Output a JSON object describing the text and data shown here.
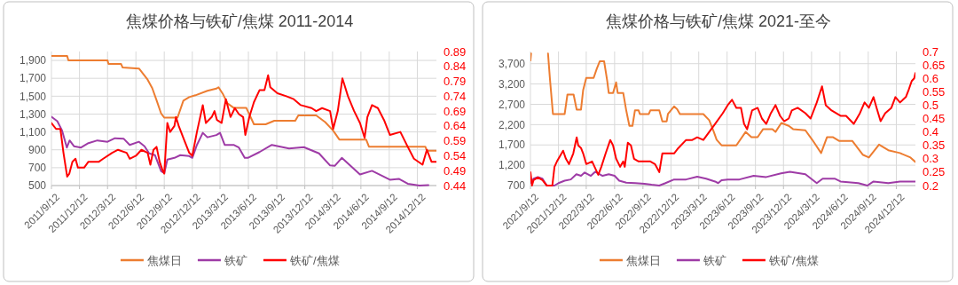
{
  "chart_data": [
    {
      "type": "line",
      "title": "焦煤价格与铁矿/焦煤  2011-2014",
      "grid": true,
      "legend": "bottom",
      "xlim": [
        "2011-09-12",
        "2015-02-12"
      ],
      "xticks": [
        {
          "value": "2011-09-12",
          "label": "2011/9/12"
        },
        {
          "value": "2011-12-12",
          "label": "2011/12/12"
        },
        {
          "value": "2012-03-12",
          "label": "2012/3/12"
        },
        {
          "value": "2012-06-12",
          "label": "2012/6/12"
        },
        {
          "value": "2012-09-12",
          "label": "2012/9/12"
        },
        {
          "value": "2012-12-12",
          "label": "2012/12/12"
        },
        {
          "value": "2013-03-12",
          "label": "2013/3/12"
        },
        {
          "value": "2013-06-12",
          "label": "2013/6/12"
        },
        {
          "value": "2013-09-12",
          "label": "2013/9/12"
        },
        {
          "value": "2013-12-12",
          "label": "2013/12/12"
        },
        {
          "value": "2014-03-12",
          "label": "2014/3/12"
        },
        {
          "value": "2014-06-12",
          "label": "2014/6/12"
        },
        {
          "value": "2014-09-12",
          "label": "2014/9/12"
        },
        {
          "value": "2014-12-12",
          "label": "2014/12/12"
        }
      ],
      "ylim": [
        500,
        2000
      ],
      "yticks": [
        500,
        700,
        900,
        {
          "value": 1100,
          "label": "1,100"
        },
        {
          "value": 1300,
          "label": "1,300"
        },
        {
          "value": 1500,
          "label": "1,500"
        },
        {
          "value": 1700,
          "label": "1,700"
        },
        {
          "value": 1900,
          "label": "1,900"
        }
      ],
      "y2lim": [
        0.44,
        0.89
      ],
      "y2ticks": [
        0.44,
        0.49,
        0.54,
        0.59,
        0.64,
        0.69,
        0.74,
        0.79,
        0.84,
        0.89
      ],
      "series": [
        {
          "name": "焦煤日",
          "color": "#ed7d31",
          "x": [
            "2011-09-12",
            "2011-11-02",
            "2011-11-06",
            "2012-03-12",
            "2012-03-15",
            "2012-04-25",
            "2012-04-30",
            "2012-06-22",
            "2012-07-20",
            "2012-08-04",
            "2012-08-18",
            "2012-09-02",
            "2012-09-12",
            "2012-10-25",
            "2012-11-13",
            "2012-12-02",
            "2012-12-22",
            "2013-01-30",
            "2013-02-28",
            "2013-03-07",
            "2013-03-22",
            "2013-04-05",
            "2013-04-25",
            "2013-06-05",
            "2013-06-30",
            "2013-08-07",
            "2013-09-04",
            "2013-11-11",
            "2013-11-21",
            "2014-01-18",
            "2014-02-16",
            "2014-03-14",
            "2014-04-03",
            "2014-06-29",
            "2014-07-08",
            "2015-01-07",
            "2015-01-12",
            "2015-02-12"
          ],
          "values": [
            1950,
            1950,
            1900,
            1900,
            1860,
            1860,
            1820,
            1810,
            1685,
            1590,
            1455,
            1305,
            1260,
            1260,
            1450,
            1490,
            1510,
            1560,
            1585,
            1600,
            1520,
            1420,
            1370,
            1370,
            1185,
            1185,
            1225,
            1225,
            1285,
            1285,
            1210,
            1115,
            1015,
            1015,
            935,
            935,
            890,
            890
          ]
        },
        {
          "name": "铁矿",
          "color": "#9e3ba6",
          "x": [
            "2011-09-12",
            "2011-10-01",
            "2011-10-16",
            "2011-11-01",
            "2011-11-10",
            "2011-11-24",
            "2011-12-17",
            "2012-01-10",
            "2012-02-08",
            "2012-03-12",
            "2012-04-05",
            "2012-05-03",
            "2012-05-23",
            "2012-06-22",
            "2012-07-10",
            "2012-07-25",
            "2012-08-13",
            "2012-09-02",
            "2012-09-12",
            "2012-09-22",
            "2012-10-15",
            "2012-11-03",
            "2012-12-02",
            "2012-12-12",
            "2012-12-27",
            "2013-01-15",
            "2013-01-30",
            "2013-02-28",
            "2013-03-12",
            "2013-03-27",
            "2013-04-25",
            "2013-05-12",
            "2013-05-31",
            "2013-06-10",
            "2013-07-18",
            "2013-08-27",
            "2013-10-22",
            "2013-12-09",
            "2014-01-27",
            "2014-03-04",
            "2014-03-19",
            "2014-04-11",
            "2014-06-09",
            "2014-07-18",
            "2014-09-14",
            "2014-10-13",
            "2014-11-11",
            "2014-12-19",
            "2015-01-17"
          ],
          "values": [
            1270,
            1220,
            1120,
            925,
            1005,
            940,
            925,
            975,
            1005,
            990,
            1030,
            1025,
            955,
            990,
            940,
            860,
            840,
            660,
            640,
            790,
            810,
            840,
            830,
            810,
            955,
            1090,
            1040,
            1065,
            1090,
            955,
            955,
            925,
            810,
            810,
            875,
            955,
            915,
            930,
            860,
            725,
            720,
            810,
            625,
            665,
            565,
            575,
            520,
            500,
            505
          ]
        },
        {
          "name": "铁矿/焦煤",
          "color": "#ff0000",
          "axis": "y2",
          "x": [
            "2011-09-12",
            "2011-09-27",
            "2011-10-11",
            "2011-10-21",
            "2011-11-02",
            "2011-11-09",
            "2011-11-19",
            "2011-11-29",
            "2011-12-07",
            "2011-12-27",
            "2012-01-10",
            "2012-01-29",
            "2012-02-13",
            "2012-02-27",
            "2012-03-27",
            "2012-04-15",
            "2012-05-13",
            "2012-05-23",
            "2012-06-12",
            "2012-06-30",
            "2012-07-20",
            "2012-07-29",
            "2012-08-08",
            "2012-08-18",
            "2012-08-28",
            "2012-09-07",
            "2012-09-12",
            "2012-09-22",
            "2012-10-01",
            "2012-10-15",
            "2012-10-20",
            "2012-10-29",
            "2012-11-13",
            "2012-12-02",
            "2012-12-12",
            "2012-12-27",
            "2013-01-15",
            "2013-01-25",
            "2013-02-13",
            "2013-02-22",
            "2013-03-02",
            "2013-03-17",
            "2013-03-31",
            "2013-04-15",
            "2013-04-29",
            "2013-05-12",
            "2013-05-26",
            "2013-06-02",
            "2013-06-15",
            "2013-06-30",
            "2013-07-18",
            "2013-08-03",
            "2013-08-15",
            "2013-08-22",
            "2013-09-14",
            "2013-10-13",
            "2013-11-06",
            "2013-11-29",
            "2014-01-03",
            "2014-01-18",
            "2014-02-06",
            "2014-03-04",
            "2014-03-14",
            "2014-03-29",
            "2014-04-13",
            "2014-05-01",
            "2014-05-21",
            "2014-06-09",
            "2014-06-24",
            "2014-07-03",
            "2014-07-18",
            "2014-08-06",
            "2014-08-26",
            "2014-09-14",
            "2014-10-18",
            "2014-11-11",
            "2014-12-01",
            "2014-12-29",
            "2015-01-12",
            "2015-01-27",
            "2015-02-12"
          ],
          "values": [
            0.65,
            0.63,
            0.63,
            0.55,
            0.47,
            0.48,
            0.52,
            0.53,
            0.5,
            0.5,
            0.52,
            0.52,
            0.52,
            0.53,
            0.55,
            0.56,
            0.55,
            0.53,
            0.54,
            0.56,
            0.55,
            0.51,
            0.56,
            0.57,
            0.52,
            0.49,
            0.48,
            0.65,
            0.62,
            0.64,
            0.67,
            0.64,
            0.6,
            0.55,
            0.54,
            0.62,
            0.71,
            0.65,
            0.67,
            0.69,
            0.66,
            0.65,
            0.73,
            0.67,
            0.7,
            0.68,
            0.67,
            0.61,
            0.67,
            0.72,
            0.76,
            0.76,
            0.81,
            0.77,
            0.75,
            0.74,
            0.73,
            0.71,
            0.7,
            0.69,
            0.7,
            0.69,
            0.63,
            0.69,
            0.8,
            0.74,
            0.69,
            0.65,
            0.6,
            0.67,
            0.71,
            0.7,
            0.66,
            0.61,
            0.62,
            0.57,
            0.53,
            0.51,
            0.56,
            0.52,
            0.52
          ]
        }
      ]
    },
    {
      "type": "line",
      "title": "焦煤价格与铁矿/焦煤  2021-至今",
      "grid": true,
      "legend": "bottom",
      "xlim": [
        "2021-09-12",
        "2025-02-12"
      ],
      "xticks": [
        {
          "value": "2021-09-12",
          "label": "2021/9/12"
        },
        {
          "value": "2021-12-12",
          "label": "2021/12/12"
        },
        {
          "value": "2022-03-12",
          "label": "2022/3/12"
        },
        {
          "value": "2022-06-12",
          "label": "2022/6/12"
        },
        {
          "value": "2022-09-12",
          "label": "2022/9/12"
        },
        {
          "value": "2022-12-12",
          "label": "2022/12/12"
        },
        {
          "value": "2023-03-12",
          "label": "2023/3/12"
        },
        {
          "value": "2023-06-12",
          "label": "2023/6/12"
        },
        {
          "value": "2023-09-12",
          "label": "2023/9/12"
        },
        {
          "value": "2023-12-12",
          "label": "2023/12/12"
        },
        {
          "value": "2024-03-12",
          "label": "2024/3/12"
        },
        {
          "value": "2024-06-12",
          "label": "2024/6/12"
        },
        {
          "value": "2024-09-12",
          "label": "2024/9/12"
        },
        {
          "value": "2024-12-12",
          "label": "2024/12/12"
        }
      ],
      "ylim": [
        700,
        4000
      ],
      "yticks": [
        700,
        {
          "value": 1200,
          "label": "1,200"
        },
        {
          "value": 1700,
          "label": "1,700"
        },
        {
          "value": 2200,
          "label": "2,200"
        },
        {
          "value": 2700,
          "label": "2,700"
        },
        {
          "value": 3200,
          "label": "3,200"
        },
        {
          "value": 3700,
          "label": "3,700"
        }
      ],
      "y2lim": [
        0.2,
        0.7
      ],
      "y2ticks": [
        0.2,
        0.25,
        0.3,
        0.35,
        0.4,
        0.45,
        0.5,
        0.55,
        0.6,
        0.65,
        0.7
      ],
      "series": [
        {
          "name": "焦煤日",
          "color": "#ed7d31",
          "x": [
            "2021-09-12",
            "2021-09-14",
            "2021-10-10",
            "2021-11-08",
            "2021-11-14",
            "2021-11-24",
            "2022-01-01",
            "2022-01-10",
            "2022-01-30",
            "2022-02-09",
            "2022-02-23",
            "2022-03-02",
            "2022-03-12",
            "2022-04-05",
            "2022-04-15",
            "2022-04-25",
            "2022-05-09",
            "2022-05-19",
            "2022-05-24",
            "2022-06-07",
            "2022-06-17",
            "2022-06-22",
            "2022-07-10",
            "2022-07-20",
            "2022-07-30",
            "2022-08-09",
            "2022-08-17",
            "2022-08-29",
            "2022-09-02",
            "2022-10-01",
            "2022-10-06",
            "2022-11-04",
            "2022-11-14",
            "2022-11-28",
            "2022-12-02",
            "2022-12-22",
            "2023-01-01",
            "2023-01-10",
            "2023-03-27",
            "2023-04-15",
            "2023-04-30",
            "2023-05-09",
            "2023-05-25",
            "2023-07-12",
            "2023-08-11",
            "2023-08-30",
            "2023-09-19",
            "2023-10-07",
            "2023-11-06",
            "2023-11-16",
            "2023-12-05",
            "2023-12-29",
            "2024-01-12",
            "2024-02-21",
            "2024-03-14",
            "2024-04-12",
            "2024-05-01",
            "2024-05-21",
            "2024-06-09",
            "2024-07-22",
            "2024-08-25",
            "2024-09-14",
            "2024-10-17",
            "2024-11-16",
            "2024-12-24",
            "2025-01-27",
            "2025-02-12"
          ],
          "values": [
            3780,
            3950,
            null,
            3950,
            3350,
            2460,
            2460,
            2940,
            2940,
            2570,
            2570,
            3050,
            3350,
            3350,
            3570,
            3760,
            3760,
            3280,
            2980,
            2980,
            3240,
            2980,
            2980,
            2540,
            2170,
            2170,
            2550,
            2550,
            2460,
            2460,
            2550,
            2550,
            2280,
            2280,
            2460,
            2650,
            2580,
            2460,
            2460,
            2310,
            2020,
            1830,
            1690,
            1690,
            2020,
            1890,
            1890,
            2090,
            2090,
            2020,
            2240,
            2170,
            2090,
            2060,
            1830,
            1500,
            1890,
            1890,
            1800,
            1800,
            1460,
            1390,
            1710,
            1570,
            1500,
            1390,
            1280
          ]
        },
        {
          "name": "铁矿",
          "color": "#9e3ba6",
          "x": [
            "2021-09-12",
            "2021-09-22",
            "2021-10-06",
            "2021-10-21",
            "2021-11-04",
            "2021-11-29",
            "2021-12-12",
            "2022-01-01",
            "2022-01-21",
            "2022-02-08",
            "2022-02-23",
            "2022-03-07",
            "2022-03-27",
            "2022-04-10",
            "2022-05-04",
            "2022-05-24",
            "2022-06-12",
            "2022-06-27",
            "2022-07-20",
            "2022-08-19",
            "2022-09-17",
            "2022-10-10",
            "2022-11-04",
            "2022-11-24",
            "2022-12-22",
            "2023-01-30",
            "2023-03-07",
            "2023-04-05",
            "2023-05-04",
            "2023-05-14",
            "2023-05-25",
            "2023-06-14",
            "2023-07-22",
            "2023-09-06",
            "2023-10-17",
            "2023-12-04",
            "2024-01-02",
            "2024-02-21",
            "2024-03-29",
            "2024-04-17",
            "2024-05-26",
            "2024-06-14",
            "2024-08-11",
            "2024-09-09",
            "2024-09-29",
            "2024-11-16",
            "2024-12-24",
            "2025-02-12"
          ],
          "values": [
            760,
            870,
            910,
            870,
            700,
            700,
            760,
            820,
            850,
            980,
            940,
            1020,
            940,
            1040,
            940,
            980,
            940,
            820,
            770,
            760,
            745,
            720,
            700,
            760,
            850,
            850,
            920,
            870,
            800,
            760,
            830,
            850,
            850,
            940,
            910,
            1000,
            1040,
            980,
            760,
            870,
            870,
            800,
            760,
            700,
            800,
            760,
            800,
            800
          ]
        },
        {
          "name": "铁矿/焦煤",
          "color": "#ff0000",
          "axis": "y2",
          "x": [
            "2021-09-12",
            "2021-09-17",
            "2021-09-22",
            "2021-10-06",
            "2021-10-21",
            "2021-11-04",
            "2021-11-22",
            "2021-11-29",
            "2021-12-07",
            "2021-12-17",
            "2021-12-27",
            "2022-01-05",
            "2022-01-15",
            "2022-01-29",
            "2022-02-09",
            "2022-02-14",
            "2022-02-23",
            "2022-03-02",
            "2022-03-12",
            "2022-03-31",
            "2022-04-20",
            "2022-04-30",
            "2022-05-14",
            "2022-05-29",
            "2022-06-07",
            "2022-06-17",
            "2022-06-30",
            "2022-07-10",
            "2022-07-15",
            "2022-07-25",
            "2022-08-04",
            "2022-08-14",
            "2022-08-29",
            "2022-09-17",
            "2022-10-06",
            "2022-10-21",
            "2022-11-04",
            "2022-11-14",
            "2022-12-02",
            "2022-12-22",
            "2023-01-05",
            "2023-01-30",
            "2023-02-19",
            "2023-03-07",
            "2023-03-27",
            "2023-04-15",
            "2023-05-04",
            "2023-05-29",
            "2023-06-14",
            "2023-06-28",
            "2023-07-12",
            "2023-07-27",
            "2023-08-06",
            "2023-08-16",
            "2023-09-01",
            "2023-09-19",
            "2023-10-03",
            "2023-10-17",
            "2023-11-01",
            "2023-11-16",
            "2023-12-01",
            "2023-12-14",
            "2023-12-29",
            "2024-01-08",
            "2024-01-27",
            "2024-02-21",
            "2024-03-09",
            "2024-03-29",
            "2024-04-15",
            "2024-04-27",
            "2024-05-16",
            "2024-06-14",
            "2024-07-02",
            "2024-07-27",
            "2024-08-16",
            "2024-08-31",
            "2024-09-14",
            "2024-09-29",
            "2024-10-09",
            "2024-10-22",
            "2024-11-06",
            "2024-11-26",
            "2024-12-09",
            "2024-12-24",
            "2025-01-12",
            "2025-01-22",
            "2025-01-31",
            "2025-02-08",
            "2025-02-12"
          ],
          "values": [
            0.25,
            0.2,
            0.22,
            0.23,
            0.22,
            0.2,
            0.2,
            0.27,
            0.29,
            0.31,
            0.33,
            0.3,
            0.28,
            0.32,
            0.38,
            0.35,
            0.34,
            0.32,
            0.28,
            0.29,
            0.24,
            0.27,
            0.32,
            0.37,
            0.35,
            0.3,
            0.27,
            0.29,
            0.27,
            0.36,
            0.35,
            0.3,
            0.29,
            0.29,
            0.29,
            0.28,
            0.25,
            0.32,
            0.32,
            0.32,
            0.34,
            0.37,
            0.37,
            0.38,
            0.37,
            0.4,
            0.43,
            0.47,
            0.5,
            0.52,
            0.49,
            0.49,
            0.43,
            0.41,
            0.48,
            0.49,
            0.45,
            0.43,
            0.47,
            0.5,
            0.46,
            0.44,
            0.45,
            0.48,
            0.49,
            0.47,
            0.45,
            0.51,
            0.57,
            0.5,
            0.48,
            0.46,
            0.46,
            0.43,
            0.47,
            0.51,
            0.49,
            0.53,
            0.49,
            0.44,
            0.47,
            0.49,
            0.53,
            0.51,
            0.53,
            0.56,
            0.59,
            0.6,
            0.62
          ]
        }
      ]
    }
  ]
}
